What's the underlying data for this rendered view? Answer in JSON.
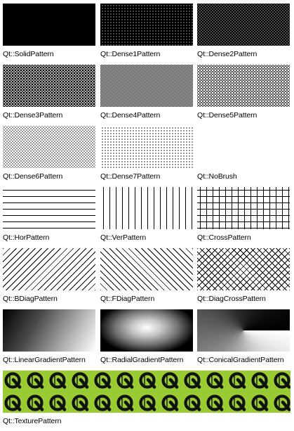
{
  "brushes": [
    {
      "id": "solid",
      "label": "Qt::SolidPattern",
      "icon": "solid-pattern"
    },
    {
      "id": "dense1",
      "label": "Qt::Dense1Pattern",
      "icon": "dense1-pattern"
    },
    {
      "id": "dense2",
      "label": "Qt::Dense2Pattern",
      "icon": "dense2-pattern"
    },
    {
      "id": "dense3",
      "label": "Qt::Dense3Pattern",
      "icon": "dense3-pattern"
    },
    {
      "id": "dense4",
      "label": "Qt::Dense4Pattern",
      "icon": "dense4-pattern"
    },
    {
      "id": "dense5",
      "label": "Qt::Dense5Pattern",
      "icon": "dense5-pattern"
    },
    {
      "id": "dense6",
      "label": "Qt::Dense6Pattern",
      "icon": "dense6-pattern"
    },
    {
      "id": "dense7",
      "label": "Qt::Dense7Pattern",
      "icon": "dense7-pattern"
    },
    {
      "id": "nobrush",
      "label": "Qt::NoBrush",
      "icon": "no-brush"
    },
    {
      "id": "hor",
      "label": "Qt::HorPattern",
      "icon": "horizontal-lines-pattern"
    },
    {
      "id": "ver",
      "label": "Qt::VerPattern",
      "icon": "vertical-lines-pattern"
    },
    {
      "id": "cross",
      "label": "Qt::CrossPattern",
      "icon": "cross-pattern"
    },
    {
      "id": "bdiag",
      "label": "Qt::BDiagPattern",
      "icon": "backward-diagonal-pattern"
    },
    {
      "id": "fdiag",
      "label": "Qt::FDiagPattern",
      "icon": "forward-diagonal-pattern"
    },
    {
      "id": "diagcross",
      "label": "Qt::DiagCrossPattern",
      "icon": "diagonal-cross-pattern"
    },
    {
      "id": "linear",
      "label": "Qt::LinearGradientPattern",
      "icon": "linear-gradient"
    },
    {
      "id": "radial",
      "label": "Qt::RadialGradientPattern",
      "icon": "radial-gradient"
    },
    {
      "id": "conical",
      "label": "Qt::ConicalGradientPattern",
      "icon": "conical-gradient"
    },
    {
      "id": "texture",
      "label": "Qt::TexturePattern",
      "icon": "qt-logo-texture"
    }
  ],
  "colors": {
    "ink": "#000000",
    "background": "#ffffff",
    "texture_green": "#99cc33"
  }
}
